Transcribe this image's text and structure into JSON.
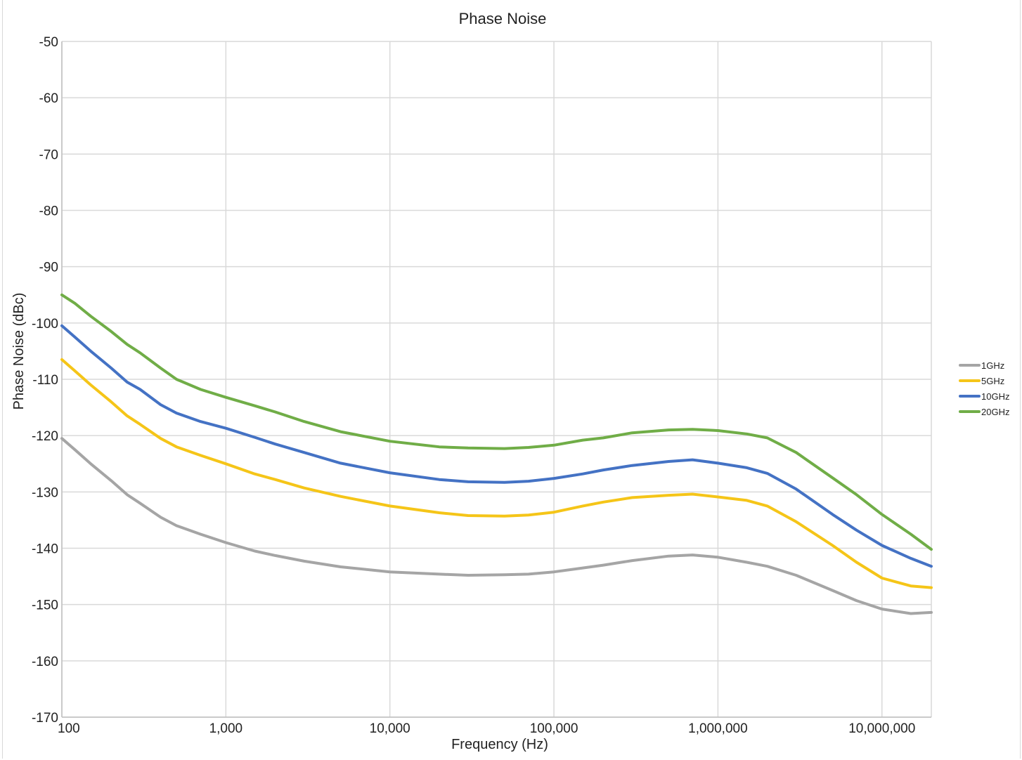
{
  "chart_data": {
    "type": "line",
    "title": "Phase Noise",
    "xlabel": "Frequency (Hz)",
    "ylabel": "Phase Noise (dBc)",
    "x_scale": "log",
    "xlim": [
      100,
      20000000
    ],
    "ylim": [
      -170,
      -50
    ],
    "x_ticks": [
      100,
      1000,
      10000,
      100000,
      1000000,
      10000000
    ],
    "x_tick_labels": [
      "100",
      "1,000",
      "10,000",
      "100,000",
      "1,000,000",
      "10,000,000"
    ],
    "y_ticks": [
      -50,
      -60,
      -70,
      -80,
      -90,
      -100,
      -110,
      -120,
      -130,
      -140,
      -150,
      -160,
      -170
    ],
    "y_tick_labels": [
      "-50",
      "-60",
      "-70",
      "-80",
      "-90",
      "-100",
      "-110",
      "-120",
      "-130",
      "-140",
      "-150",
      "-160",
      "-170"
    ],
    "grid": true,
    "legend_position": "right",
    "series": [
      {
        "name": "1GHz",
        "color": "#a5a5a5",
        "x": [
          100,
          120,
          150,
          200,
          250,
          300,
          400,
          500,
          700,
          1000,
          1500,
          2000,
          3000,
          5000,
          10000,
          20000,
          30000,
          50000,
          70000,
          100000,
          150000,
          200000,
          300000,
          500000,
          700000,
          1000000,
          1500000,
          2000000,
          3000000,
          5000000,
          7000000,
          10000000,
          15000000,
          20000000
        ],
        "values": [
          -120.5,
          -122.5,
          -125,
          -128,
          -130.5,
          -132,
          -134.5,
          -136,
          -137.5,
          -139,
          -140.5,
          -141.3,
          -142.3,
          -143.3,
          -144.2,
          -144.6,
          -144.8,
          -144.7,
          -144.6,
          -144.2,
          -143.5,
          -143,
          -142.2,
          -141.4,
          -141.2,
          -141.6,
          -142.5,
          -143.2,
          -144.8,
          -147.5,
          -149.3,
          -150.8,
          -151.6,
          -151.4
        ]
      },
      {
        "name": "5GHz",
        "color": "#f5c518",
        "x": [
          100,
          120,
          150,
          200,
          250,
          300,
          400,
          500,
          700,
          1000,
          1500,
          2000,
          3000,
          5000,
          10000,
          20000,
          30000,
          50000,
          70000,
          100000,
          150000,
          200000,
          300000,
          500000,
          700000,
          1000000,
          1500000,
          2000000,
          3000000,
          5000000,
          7000000,
          10000000,
          15000000,
          20000000
        ],
        "values": [
          -106.5,
          -108.5,
          -111,
          -114,
          -116.5,
          -118,
          -120.5,
          -122,
          -123.5,
          -125,
          -126.8,
          -127.8,
          -129.3,
          -130.8,
          -132.5,
          -133.7,
          -134.2,
          -134.3,
          -134.1,
          -133.6,
          -132.5,
          -131.8,
          -131,
          -130.6,
          -130.4,
          -130.9,
          -131.5,
          -132.5,
          -135.3,
          -139.5,
          -142.5,
          -145.3,
          -146.7,
          -147
        ]
      },
      {
        "name": "10GHz",
        "color": "#4472c4",
        "x": [
          100,
          120,
          150,
          200,
          250,
          300,
          400,
          500,
          700,
          1000,
          1500,
          2000,
          3000,
          5000,
          10000,
          20000,
          30000,
          50000,
          70000,
          100000,
          150000,
          200000,
          300000,
          500000,
          700000,
          1000000,
          1500000,
          2000000,
          3000000,
          5000000,
          7000000,
          10000000,
          15000000,
          20000000
        ],
        "values": [
          -100.5,
          -102.5,
          -105,
          -108,
          -110.5,
          -111.8,
          -114.5,
          -116,
          -117.5,
          -118.7,
          -120.3,
          -121.5,
          -123,
          -124.9,
          -126.6,
          -127.8,
          -128.2,
          -128.3,
          -128.1,
          -127.6,
          -126.8,
          -126.1,
          -125.3,
          -124.6,
          -124.3,
          -124.9,
          -125.7,
          -126.7,
          -129.5,
          -134,
          -136.8,
          -139.5,
          -141.8,
          -143.2
        ]
      },
      {
        "name": "20GHz",
        "color": "#70ad47",
        "x": [
          100,
          120,
          150,
          200,
          250,
          300,
          400,
          500,
          700,
          1000,
          1500,
          2000,
          3000,
          5000,
          10000,
          20000,
          30000,
          50000,
          70000,
          100000,
          150000,
          200000,
          300000,
          500000,
          700000,
          1000000,
          1500000,
          2000000,
          3000000,
          5000000,
          7000000,
          10000000,
          15000000,
          20000000
        ],
        "values": [
          -95,
          -96.5,
          -98.8,
          -101.5,
          -103.8,
          -105.3,
          -108,
          -110,
          -111.8,
          -113.2,
          -114.7,
          -115.8,
          -117.5,
          -119.3,
          -121,
          -122,
          -122.2,
          -122.3,
          -122.1,
          -121.7,
          -120.8,
          -120.4,
          -119.5,
          -119,
          -118.9,
          -119.1,
          -119.7,
          -120.4,
          -123,
          -127.5,
          -130.5,
          -134,
          -137.5,
          -140.2
        ]
      }
    ]
  }
}
